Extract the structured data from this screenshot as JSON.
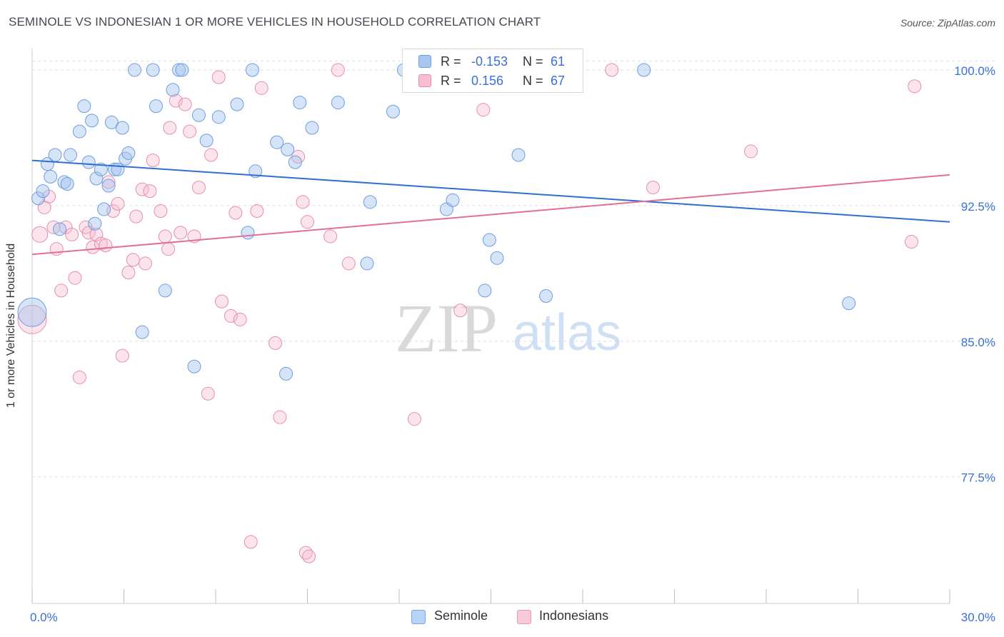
{
  "title": "SEMINOLE VS INDONESIAN 1 OR MORE VEHICLES IN HOUSEHOLD CORRELATION CHART",
  "source": "Source: ZipAtlas.com",
  "watermark": {
    "zip": "ZIP",
    "atlas": "atlas"
  },
  "legend_top": [
    {
      "r_label": "R =",
      "r_value": "-0.153",
      "n_label": "N =",
      "n_value": "61",
      "color": "#a8c7f0",
      "stroke": "#6f9fe0"
    },
    {
      "r_label": "R =",
      "r_value": "0.156",
      "n_label": "N =",
      "n_value": "67",
      "color": "#f7bfd1",
      "stroke": "#e88aa9"
    }
  ],
  "legend_bottom": [
    {
      "label": "Seminole",
      "color": "#b9d3f5",
      "stroke": "#7aa5e2"
    },
    {
      "label": "Indonesians",
      "color": "#f9cbd9",
      "stroke": "#e59ab4"
    }
  ],
  "colors": {
    "seminole_fill": "rgba(164,196,240,0.45)",
    "seminole_stroke": "#6f9ddf",
    "seminole_line": "#2f6fcf",
    "indonesian_fill": "rgba(247,187,207,0.40)",
    "indonesian_stroke": "#e48fae",
    "indonesian_line": "#e0709a",
    "grid": "#dddddd",
    "tick_label": "#3a6fd8"
  },
  "chart_data": {
    "type": "scatter",
    "title": "SEMINOLE VS INDONESIAN 1 OR MORE VEHICLES IN HOUSEHOLD CORRELATION CHART",
    "xlabel": "",
    "ylabel": "1 or more Vehicles in Household",
    "xlim": [
      0,
      30
    ],
    "ylim": [
      70.5,
      101.5
    ],
    "x_ticks": [
      0,
      3,
      6,
      9,
      12,
      15,
      18,
      21,
      24,
      27,
      30
    ],
    "x_tick_labels": [
      {
        "value": 0,
        "label": "0.0%"
      },
      {
        "value": 30,
        "label": "30.0%"
      }
    ],
    "y_ticks": [
      {
        "value": 100,
        "label": "100.0%"
      },
      {
        "value": 92.5,
        "label": "92.5%"
      },
      {
        "value": 85,
        "label": "85.0%"
      },
      {
        "value": 77.5,
        "label": "77.5%"
      }
    ],
    "grid": "horizontal dashed",
    "legend_placement": "top-center and bottom",
    "series": [
      {
        "name": "Seminole",
        "trend": {
          "x": [
            0,
            30
          ],
          "y": [
            95.0,
            91.6
          ]
        },
        "points": [
          [
            0.0,
            86.6,
            20
          ],
          [
            0.2,
            92.9,
            9
          ],
          [
            0.35,
            93.3,
            9
          ],
          [
            0.5,
            94.8,
            9
          ],
          [
            0.6,
            94.1,
            9
          ],
          [
            0.75,
            95.3,
            9
          ],
          [
            0.9,
            91.2,
            9
          ],
          [
            1.05,
            93.8,
            9
          ],
          [
            1.15,
            93.7,
            9
          ],
          [
            1.25,
            95.3,
            9
          ],
          [
            1.55,
            96.6,
            9
          ],
          [
            1.7,
            98.0,
            9
          ],
          [
            1.85,
            94.9,
            9
          ],
          [
            1.95,
            97.2,
            9
          ],
          [
            2.05,
            91.5,
            9
          ],
          [
            2.1,
            94.0,
            9
          ],
          [
            2.25,
            94.5,
            9
          ],
          [
            2.35,
            92.3,
            9
          ],
          [
            2.5,
            93.6,
            9
          ],
          [
            2.6,
            97.1,
            9
          ],
          [
            2.7,
            94.5,
            9
          ],
          [
            2.8,
            94.5,
            9
          ],
          [
            2.95,
            96.8,
            9
          ],
          [
            3.05,
            95.1,
            9
          ],
          [
            3.15,
            95.4,
            9
          ],
          [
            3.35,
            100.0,
            9
          ],
          [
            3.6,
            85.5,
            9
          ],
          [
            3.95,
            100.0,
            9
          ],
          [
            4.05,
            98.0,
            9
          ],
          [
            4.35,
            87.8,
            9
          ],
          [
            4.6,
            98.9,
            9
          ],
          [
            4.8,
            100.0,
            9
          ],
          [
            4.9,
            100.0,
            9
          ],
          [
            5.3,
            83.6,
            9
          ],
          [
            5.45,
            97.5,
            9
          ],
          [
            5.7,
            96.1,
            9
          ],
          [
            6.1,
            97.4,
            9
          ],
          [
            6.7,
            98.1,
            9
          ],
          [
            7.05,
            91.0,
            9
          ],
          [
            7.2,
            100.0,
            9
          ],
          [
            7.3,
            94.4,
            9
          ],
          [
            8.0,
            96.0,
            9
          ],
          [
            8.3,
            83.2,
            9
          ],
          [
            8.35,
            95.6,
            9
          ],
          [
            8.6,
            94.9,
            9
          ],
          [
            8.75,
            98.2,
            9
          ],
          [
            9.15,
            96.8,
            9
          ],
          [
            10.0,
            98.2,
            9
          ],
          [
            10.95,
            89.3,
            9
          ],
          [
            11.05,
            92.7,
            9
          ],
          [
            11.8,
            97.7,
            9
          ],
          [
            12.15,
            100.0,
            9
          ],
          [
            13.55,
            92.3,
            9
          ],
          [
            13.75,
            92.8,
            9
          ],
          [
            14.8,
            87.8,
            9
          ],
          [
            14.95,
            90.6,
            9
          ],
          [
            15.2,
            89.6,
            9
          ],
          [
            15.9,
            95.3,
            9
          ],
          [
            16.8,
            87.5,
            9
          ],
          [
            20.0,
            100.0,
            9
          ],
          [
            26.7,
            87.1,
            9
          ]
        ]
      },
      {
        "name": "Indonesians",
        "trend": {
          "x": [
            0,
            30
          ],
          "y": [
            89.8,
            94.2
          ]
        },
        "points": [
          [
            0.0,
            86.2,
            20
          ],
          [
            0.25,
            90.9,
            11
          ],
          [
            0.4,
            92.4,
            9
          ],
          [
            0.55,
            93.0,
            9
          ],
          [
            0.7,
            91.3,
            9
          ],
          [
            0.8,
            90.1,
            9
          ],
          [
            0.95,
            87.8,
            9
          ],
          [
            1.1,
            91.3,
            9
          ],
          [
            1.3,
            90.9,
            9
          ],
          [
            1.4,
            88.5,
            9
          ],
          [
            1.55,
            83.0,
            9
          ],
          [
            1.75,
            91.3,
            9
          ],
          [
            1.85,
            91.0,
            9
          ],
          [
            1.98,
            90.2,
            9
          ],
          [
            2.1,
            90.9,
            9
          ],
          [
            2.25,
            90.4,
            9
          ],
          [
            2.4,
            90.3,
            9
          ],
          [
            2.5,
            93.8,
            9
          ],
          [
            2.65,
            92.2,
            9
          ],
          [
            2.8,
            92.6,
            9
          ],
          [
            2.95,
            84.2,
            9
          ],
          [
            3.15,
            88.8,
            9
          ],
          [
            3.3,
            89.5,
            9
          ],
          [
            3.4,
            91.9,
            9
          ],
          [
            3.6,
            93.4,
            9
          ],
          [
            3.7,
            89.3,
            9
          ],
          [
            3.85,
            93.3,
            9
          ],
          [
            3.95,
            95.0,
            9
          ],
          [
            4.2,
            92.2,
            9
          ],
          [
            4.35,
            90.8,
            9
          ],
          [
            4.45,
            90.1,
            9
          ],
          [
            4.5,
            96.8,
            9
          ],
          [
            4.7,
            98.3,
            9
          ],
          [
            4.85,
            91.0,
            9
          ],
          [
            5.0,
            98.1,
            9
          ],
          [
            5.15,
            96.6,
            9
          ],
          [
            5.3,
            90.8,
            9
          ],
          [
            5.45,
            93.5,
            9
          ],
          [
            5.75,
            82.1,
            9
          ],
          [
            5.85,
            95.3,
            9
          ],
          [
            6.1,
            99.6,
            9
          ],
          [
            6.2,
            87.2,
            9
          ],
          [
            6.5,
            86.4,
            9
          ],
          [
            6.65,
            92.1,
            9
          ],
          [
            6.8,
            86.2,
            9
          ],
          [
            7.15,
            73.9,
            9
          ],
          [
            7.35,
            92.2,
            9
          ],
          [
            7.5,
            99.0,
            9
          ],
          [
            7.95,
            84.9,
            9
          ],
          [
            8.1,
            80.8,
            9
          ],
          [
            8.7,
            95.2,
            9
          ],
          [
            8.85,
            92.7,
            9
          ],
          [
            8.95,
            73.3,
            9
          ],
          [
            9.05,
            73.1,
            9
          ],
          [
            9.0,
            91.6,
            9
          ],
          [
            9.75,
            90.8,
            9
          ],
          [
            10.0,
            100.0,
            9
          ],
          [
            10.35,
            89.3,
            9
          ],
          [
            12.5,
            80.7,
            9
          ],
          [
            14.0,
            86.7,
            9
          ],
          [
            14.6,
            100.0,
            9
          ],
          [
            14.75,
            97.8,
            9
          ],
          [
            18.95,
            100.0,
            9
          ],
          [
            20.3,
            93.5,
            9
          ],
          [
            23.5,
            95.5,
            9
          ],
          [
            28.75,
            90.5,
            9
          ],
          [
            28.85,
            99.1,
            9
          ]
        ]
      }
    ]
  }
}
